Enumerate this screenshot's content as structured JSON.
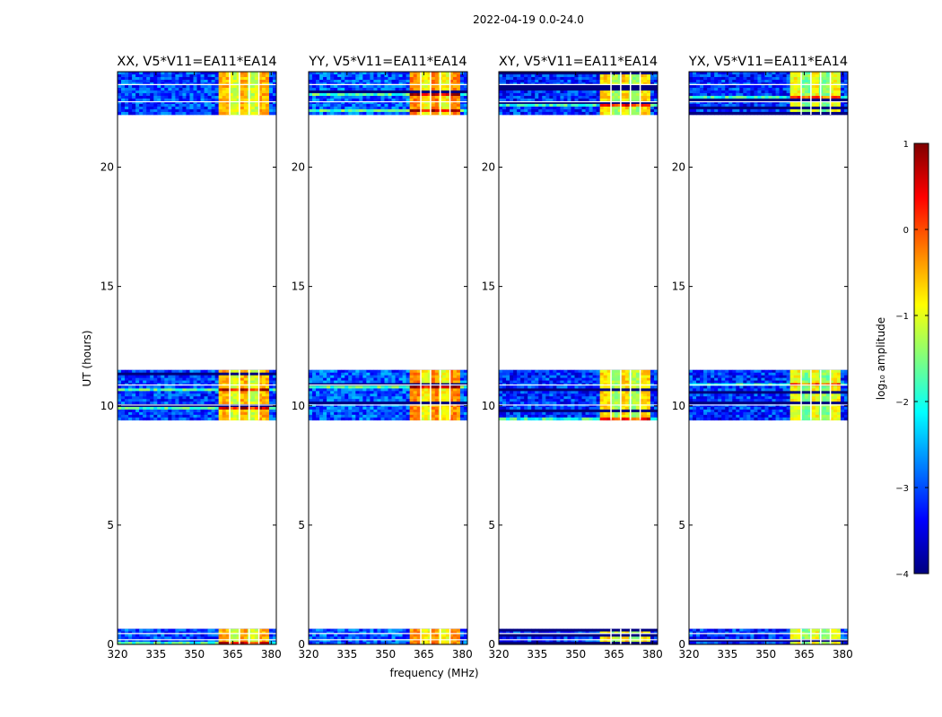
{
  "figure": {
    "suptitle": "2022-04-19 0.0-24.0",
    "xlabel": "frequency (MHz)",
    "ylabel": "UT (hours)"
  },
  "colorbar": {
    "label": "log₁₀ amplitude",
    "ticks": [
      "1",
      "0",
      "−1",
      "−2",
      "−3",
      "−4"
    ],
    "tick_values": [
      1,
      0,
      -1,
      -2,
      -3,
      -4
    ],
    "range": [
      -4,
      1
    ],
    "colormap": "jet",
    "stops": [
      "#00007f",
      "#0000ff",
      "#007fff",
      "#00ffff",
      "#7fff7f",
      "#ffff00",
      "#ff7f00",
      "#ff0000",
      "#7f0000"
    ]
  },
  "chart_data": [
    {
      "type": "heatmap",
      "title": "XX, V5*V11=EA11*EA14",
      "xlim": [
        320,
        382
      ],
      "ylim": [
        0,
        24
      ],
      "xticks": [
        320,
        335,
        350,
        365,
        380
      ],
      "yticks": [
        0,
        5,
        10,
        15,
        20
      ],
      "data_ut_ranges": [
        [
          0.0,
          0.65
        ],
        [
          9.4,
          11.5
        ],
        [
          22.2,
          24.0
        ]
      ],
      "bright_band_mhz": [
        360,
        379
      ],
      "band_log10_amplitude": -1.0,
      "background_log10_amplitude": -3.6
    },
    {
      "type": "heatmap",
      "title": "YY, V5*V11=EA11*EA14",
      "xlim": [
        320,
        382
      ],
      "ylim": [
        0,
        24
      ],
      "xticks": [
        320,
        335,
        350,
        365,
        380
      ],
      "yticks": [
        0,
        5,
        10,
        15,
        20
      ],
      "data_ut_ranges": [
        [
          0.0,
          0.65
        ],
        [
          9.4,
          11.5
        ],
        [
          22.2,
          24.0
        ]
      ],
      "bright_band_mhz": [
        360,
        379
      ],
      "band_log10_amplitude": -0.8,
      "background_log10_amplitude": -3.5
    },
    {
      "type": "heatmap",
      "title": "XY, V5*V11=EA11*EA14",
      "xlim": [
        320,
        382
      ],
      "ylim": [
        0,
        24
      ],
      "xticks": [
        320,
        335,
        350,
        365,
        380
      ],
      "yticks": [
        0,
        5,
        10,
        15,
        20
      ],
      "data_ut_ranges": [
        [
          0.0,
          0.65
        ],
        [
          9.4,
          11.5
        ],
        [
          22.2,
          24.0
        ]
      ],
      "bright_band_mhz": [
        360,
        379
      ],
      "band_log10_amplitude": -1.2,
      "background_log10_amplitude": -3.7
    },
    {
      "type": "heatmap",
      "title": "YX, V5*V11=EA11*EA14",
      "xlim": [
        320,
        382
      ],
      "ylim": [
        0,
        24
      ],
      "xticks": [
        320,
        335,
        350,
        365,
        380
      ],
      "yticks": [
        0,
        5,
        10,
        15,
        20
      ],
      "data_ut_ranges": [
        [
          0.0,
          0.65
        ],
        [
          9.4,
          11.5
        ],
        [
          22.2,
          24.0
        ]
      ],
      "bright_band_mhz": [
        360,
        379
      ],
      "band_log10_amplitude": -1.4,
      "background_log10_amplitude": -3.7
    }
  ]
}
